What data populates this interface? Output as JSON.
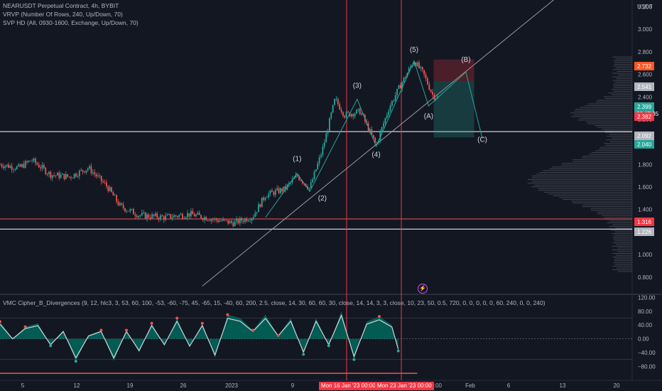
{
  "legend": {
    "symbol": "NEARUSDT Perpetual Contract, 4h, BYBIT",
    "vrvp": "VRVP (Number Of Rows, 240, Up/Down, 70)",
    "svp": "SVP HD (All, 0930-1600, Exchange, Up/Down, 70)",
    "oscillator": "VMC Cipher_B_Divergences (9, 12, hlc3, 3, 53, 60, 100, -53, -60, -75, 45, -65, 15, -40, 60, 200, 2.5, close, 14, 30, 60, 60, 30, close, 14, 14, 3, 3, close, 10, 23, 50, 0.5, 720, 0, 0, 0, 0, 0, 60, 240, 0, 0, 240)"
  },
  "colors": {
    "background": "#131722",
    "bull": "#26a69a",
    "bear": "#ef5350",
    "accent": "#ff5722",
    "vline": "#f23645"
  },
  "chart_data": [
    {
      "type": "line",
      "title": "NEARUSDT Perpetual Contract, 4h, BYBIT",
      "currency": "USDT",
      "x_ticks": [
        "5",
        "12",
        "19",
        "26",
        "2023",
        "9",
        "Mon 16 Jan '23  00:00",
        "Mon 23 Jan '23  00:00",
        "12:00",
        "Feb",
        "6",
        "13",
        "20"
      ],
      "y_ticks": [
        3.2,
        3.0,
        2.8,
        2.6,
        2.4,
        2.2,
        2.0,
        1.8,
        1.6,
        1.4,
        1.2,
        1.0,
        0.8
      ],
      "ylim": [
        0.66,
        3.26
      ],
      "price_path": [
        {
          "x": 0,
          "y": 1.8
        },
        {
          "x": 0.03,
          "y": 1.77
        },
        {
          "x": 0.05,
          "y": 1.84
        },
        {
          "x": 0.08,
          "y": 1.71
        },
        {
          "x": 0.11,
          "y": 1.69
        },
        {
          "x": 0.14,
          "y": 1.77
        },
        {
          "x": 0.17,
          "y": 1.6
        },
        {
          "x": 0.19,
          "y": 1.43
        },
        {
          "x": 0.22,
          "y": 1.35
        },
        {
          "x": 0.26,
          "y": 1.33
        },
        {
          "x": 0.3,
          "y": 1.36
        },
        {
          "x": 0.34,
          "y": 1.31
        },
        {
          "x": 0.37,
          "y": 1.28
        },
        {
          "x": 0.4,
          "y": 1.34
        },
        {
          "x": 0.42,
          "y": 1.53
        },
        {
          "x": 0.45,
          "y": 1.58
        },
        {
          "x": 0.47,
          "y": 1.7
        },
        {
          "x": 0.49,
          "y": 1.59
        },
        {
          "x": 0.51,
          "y": 1.93
        },
        {
          "x": 0.53,
          "y": 2.38
        },
        {
          "x": 0.545,
          "y": 2.24
        },
        {
          "x": 0.57,
          "y": 2.27
        },
        {
          "x": 0.595,
          "y": 1.97
        },
        {
          "x": 0.615,
          "y": 2.3
        },
        {
          "x": 0.635,
          "y": 2.52
        },
        {
          "x": 0.655,
          "y": 2.72
        },
        {
          "x": 0.67,
          "y": 2.6
        },
        {
          "x": 0.685,
          "y": 2.41
        },
        {
          "x": 0.695,
          "y": 2.39
        }
      ],
      "wave_labels": [
        {
          "label": "(1)",
          "x": 0.47,
          "y": 1.83
        },
        {
          "label": "(2)",
          "x": 0.51,
          "y": 1.48
        },
        {
          "label": "(3)",
          "x": 0.565,
          "y": 2.48
        },
        {
          "label": "(4)",
          "x": 0.595,
          "y": 1.87
        },
        {
          "label": "(5)",
          "x": 0.655,
          "y": 2.8
        },
        {
          "label": "(A)",
          "x": 0.678,
          "y": 2.21
        },
        {
          "label": "(B)",
          "x": 0.737,
          "y": 2.71
        },
        {
          "label": "(C)",
          "x": 0.763,
          "y": 2.0
        }
      ],
      "horizontal_levels": [
        {
          "value": 2.092,
          "color": "#ffffff"
        },
        {
          "value": 1.316,
          "color": "#ef5350"
        },
        {
          "value": 1.226,
          "color": "#ffffff"
        }
      ],
      "price_tags": [
        {
          "label": "2.732",
          "color": "#ff5722"
        },
        {
          "label": "2.541",
          "color": "#b2b5be"
        },
        {
          "label": "2.399",
          "sublabel": "01:42:35",
          "color": "#26a69a"
        },
        {
          "label": "2.382",
          "color": "#f23645"
        },
        {
          "label": "2.092",
          "color": "#b2b5be"
        },
        {
          "label": "2.040",
          "color": "#26a69a"
        },
        {
          "label": "1.316",
          "color": "#f23645"
        },
        {
          "label": "1.226",
          "color": "#b2b5be"
        }
      ],
      "position_box": {
        "entry": 2.541,
        "stop": 2.732,
        "target": 2.04
      }
    },
    {
      "type": "area",
      "title": "VMC Cipher_B_Divergences",
      "y_ticks": [
        120.0,
        80.0,
        40.0,
        0.0,
        -40.0,
        -80.0
      ],
      "ylim": [
        -110,
        125
      ],
      "wave_points": [
        {
          "x": 0,
          "y": 50
        },
        {
          "x": 0.02,
          "y": 0
        },
        {
          "x": 0.04,
          "y": 35
        },
        {
          "x": 0.06,
          "y": 45
        },
        {
          "x": 0.08,
          "y": -20
        },
        {
          "x": 0.1,
          "y": 25
        },
        {
          "x": 0.12,
          "y": -65
        },
        {
          "x": 0.14,
          "y": 10
        },
        {
          "x": 0.16,
          "y": 25
        },
        {
          "x": 0.18,
          "y": -65
        },
        {
          "x": 0.2,
          "y": 25
        },
        {
          "x": 0.22,
          "y": -40
        },
        {
          "x": 0.24,
          "y": 45
        },
        {
          "x": 0.26,
          "y": -20
        },
        {
          "x": 0.28,
          "y": 60
        },
        {
          "x": 0.3,
          "y": -25
        },
        {
          "x": 0.32,
          "y": 45
        },
        {
          "x": 0.34,
          "y": -55
        },
        {
          "x": 0.36,
          "y": 70
        },
        {
          "x": 0.38,
          "y": 60
        },
        {
          "x": 0.4,
          "y": 25
        },
        {
          "x": 0.42,
          "y": 70
        },
        {
          "x": 0.44,
          "y": 10
        },
        {
          "x": 0.46,
          "y": 60
        },
        {
          "x": 0.48,
          "y": -45
        },
        {
          "x": 0.5,
          "y": 60
        },
        {
          "x": 0.52,
          "y": -20
        },
        {
          "x": 0.54,
          "y": 80
        },
        {
          "x": 0.56,
          "y": -60
        },
        {
          "x": 0.58,
          "y": 50
        },
        {
          "x": 0.6,
          "y": 65
        },
        {
          "x": 0.62,
          "y": 40
        },
        {
          "x": 0.63,
          "y": -35
        }
      ]
    }
  ],
  "axis_unit": "USDT"
}
